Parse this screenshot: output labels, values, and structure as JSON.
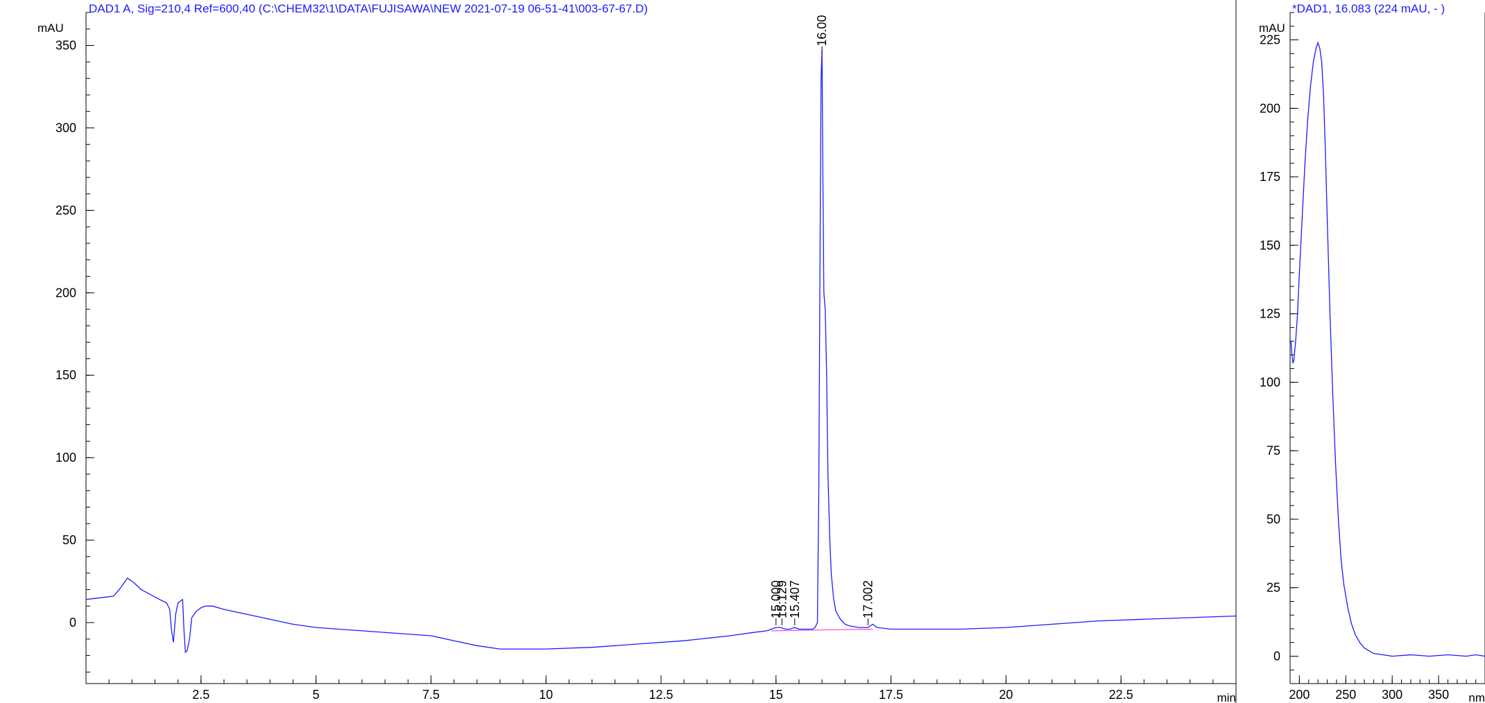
{
  "chart_data": [
    {
      "type": "line",
      "title": "DAD1 A, Sig=210,4 Ref=600,40 (C:\\CHEM32\\1\\DATA\\FUJISAWA\\NEW 2021-07-19 06-51-41\\003-67-67.D)",
      "xlabel": "min",
      "ylabel": "mAU",
      "xlim": [
        0,
        25
      ],
      "ylim": [
        -37,
        370
      ],
      "x_ticks": [
        "2.5",
        "5",
        "7.5",
        "10",
        "12.5",
        "15",
        "17.5",
        "20",
        "22.5"
      ],
      "y_ticks": [
        "0",
        "50",
        "100",
        "150",
        "200",
        "250",
        "300",
        "350"
      ],
      "series": [
        {
          "color": "#1a1aff",
          "x": [
            0,
            0.3,
            0.6,
            0.75,
            0.9,
            1.05,
            1.2,
            1.4,
            1.6,
            1.75,
            1.82,
            1.86,
            1.9,
            1.95,
            2.0,
            2.05,
            2.1,
            2.13,
            2.16,
            2.2,
            2.25,
            2.3,
            2.4,
            2.5,
            2.6,
            2.75,
            3.0,
            3.5,
            4.0,
            4.5,
            5.0,
            6.0,
            7.0,
            7.5,
            8.0,
            8.5,
            9.0,
            10.0,
            11.0,
            12.0,
            13.0,
            14.0,
            14.5,
            14.8,
            14.9,
            15.0,
            15.1,
            15.2,
            15.3,
            15.4,
            15.5,
            15.6,
            15.7,
            15.8,
            15.85,
            15.9,
            15.93,
            15.96,
            15.98,
            16.0,
            16.02,
            16.04,
            16.07,
            16.1,
            16.13,
            16.17,
            16.2,
            16.25,
            16.3,
            16.4,
            16.5,
            16.6,
            16.8,
            17.0,
            17.1,
            17.2,
            17.5,
            18.0,
            19.0,
            20.0,
            21.0,
            22.0,
            23.0,
            24.0,
            25.0
          ],
          "y": [
            14,
            15,
            16,
            21,
            27,
            24,
            20,
            17,
            14,
            12,
            8,
            -5,
            -12,
            5,
            12,
            13,
            14,
            -5,
            -18,
            -17,
            -10,
            3,
            7,
            9,
            10,
            10,
            8,
            5,
            2,
            -1,
            -3,
            -5,
            -7,
            -8,
            -11,
            -14,
            -16,
            -16,
            -15,
            -13,
            -11,
            -8,
            -6,
            -5,
            -4,
            -3,
            -3,
            -4,
            -4,
            -3,
            -4,
            -4,
            -4,
            -4,
            -3,
            0,
            80,
            240,
            330,
            347,
            270,
            200,
            190,
            150,
            90,
            50,
            30,
            15,
            7,
            2,
            -1,
            -2,
            -3,
            -3,
            -1,
            -3,
            -4,
            -4,
            -4,
            -3,
            -1,
            1,
            2,
            3,
            4
          ]
        }
      ],
      "peak_labels": [
        {
          "text": "15.000",
          "x": 15.0
        },
        {
          "text": "15.129",
          "x": 15.129
        },
        {
          "text": "15.407",
          "x": 15.407
        },
        {
          "text": "16.00",
          "x": 16.0
        },
        {
          "text": "17.002",
          "x": 17.002
        }
      ],
      "baseline": {
        "color": "#ff44cc",
        "x": [
          14.9,
          16.0,
          17.1
        ],
        "y": [
          -5,
          -4.5,
          -4
        ]
      },
      "grid": false
    },
    {
      "type": "line",
      "title": "*DAD1, 16.083 (224 mAU, - )",
      "xlabel": "nm",
      "ylabel": "mAU",
      "xlim": [
        190,
        400
      ],
      "ylim": [
        -10,
        235
      ],
      "x_ticks": [
        "200",
        "250",
        "300",
        "350"
      ],
      "y_ticks": [
        "0",
        "25",
        "50",
        "75",
        "100",
        "125",
        "150",
        "175",
        "200",
        "225"
      ],
      "series": [
        {
          "color": "#1a1aff",
          "x": [
            190,
            191,
            192,
            193,
            194,
            196,
            198,
            200,
            203,
            206,
            209,
            212,
            215,
            218,
            220,
            222,
            224,
            226,
            228,
            230,
            233,
            236,
            239,
            242,
            245,
            248,
            252,
            256,
            260,
            265,
            270,
            280,
            300,
            320,
            340,
            360,
            380,
            390,
            400
          ],
          "y": [
            115,
            115,
            110,
            107,
            108,
            115,
            125,
            140,
            160,
            180,
            196,
            208,
            217,
            222,
            224,
            222,
            217,
            205,
            185,
            160,
            125,
            95,
            70,
            50,
            35,
            26,
            18,
            12,
            8,
            5,
            3,
            1,
            0,
            0.5,
            0,
            0.5,
            0,
            0.5,
            0
          ]
        }
      ],
      "grid": false
    }
  ]
}
